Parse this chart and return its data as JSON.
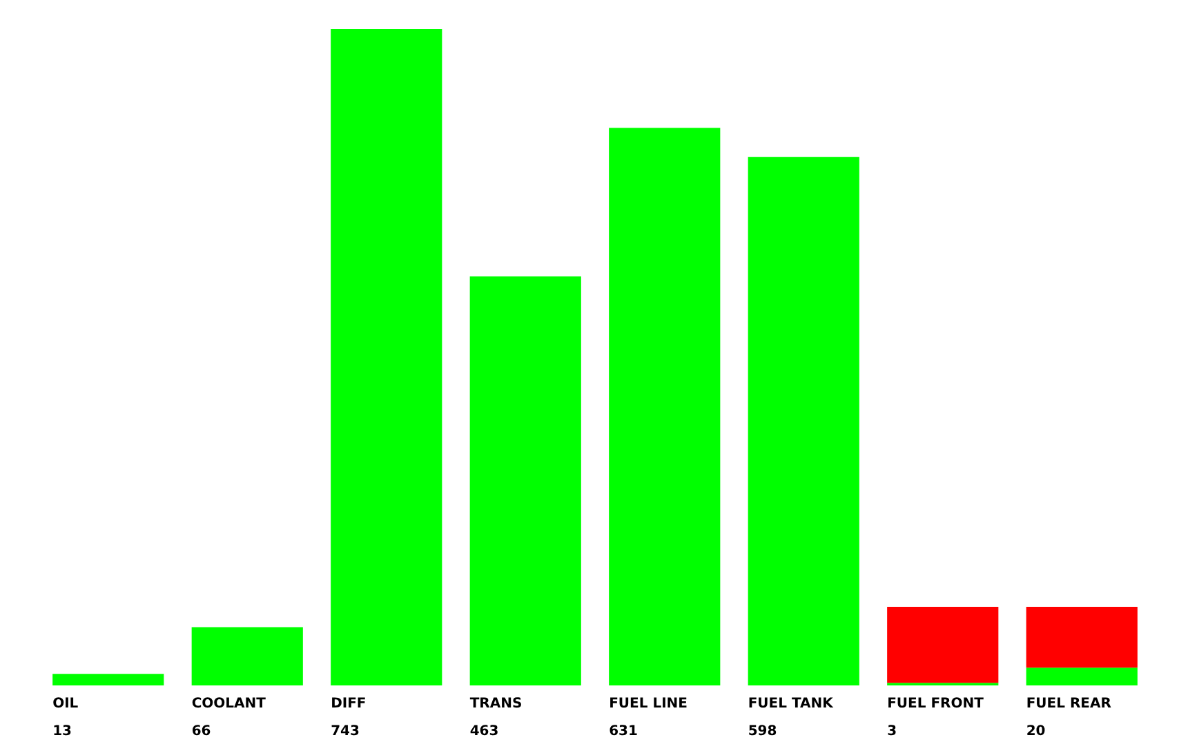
{
  "chart_data": {
    "type": "bar",
    "stacked": true,
    "categories": [
      "OIL",
      "COOLANT",
      "DIFF",
      "TRANS",
      "FUEL LINE",
      "FUEL TANK",
      "FUEL FRONT",
      "FUEL REAR"
    ],
    "series": [
      {
        "color": "#00ff00",
        "values": [
          13,
          66,
          743,
          463,
          631,
          598,
          3,
          20
        ],
        "value_labels": [
          "13",
          "66",
          "743",
          "463",
          "631",
          "598",
          "3",
          "20"
        ]
      },
      {
        "color": "#ff0000",
        "values": [
          null,
          null,
          null,
          null,
          null,
          null,
          86,
          69
        ]
      }
    ]
  }
}
